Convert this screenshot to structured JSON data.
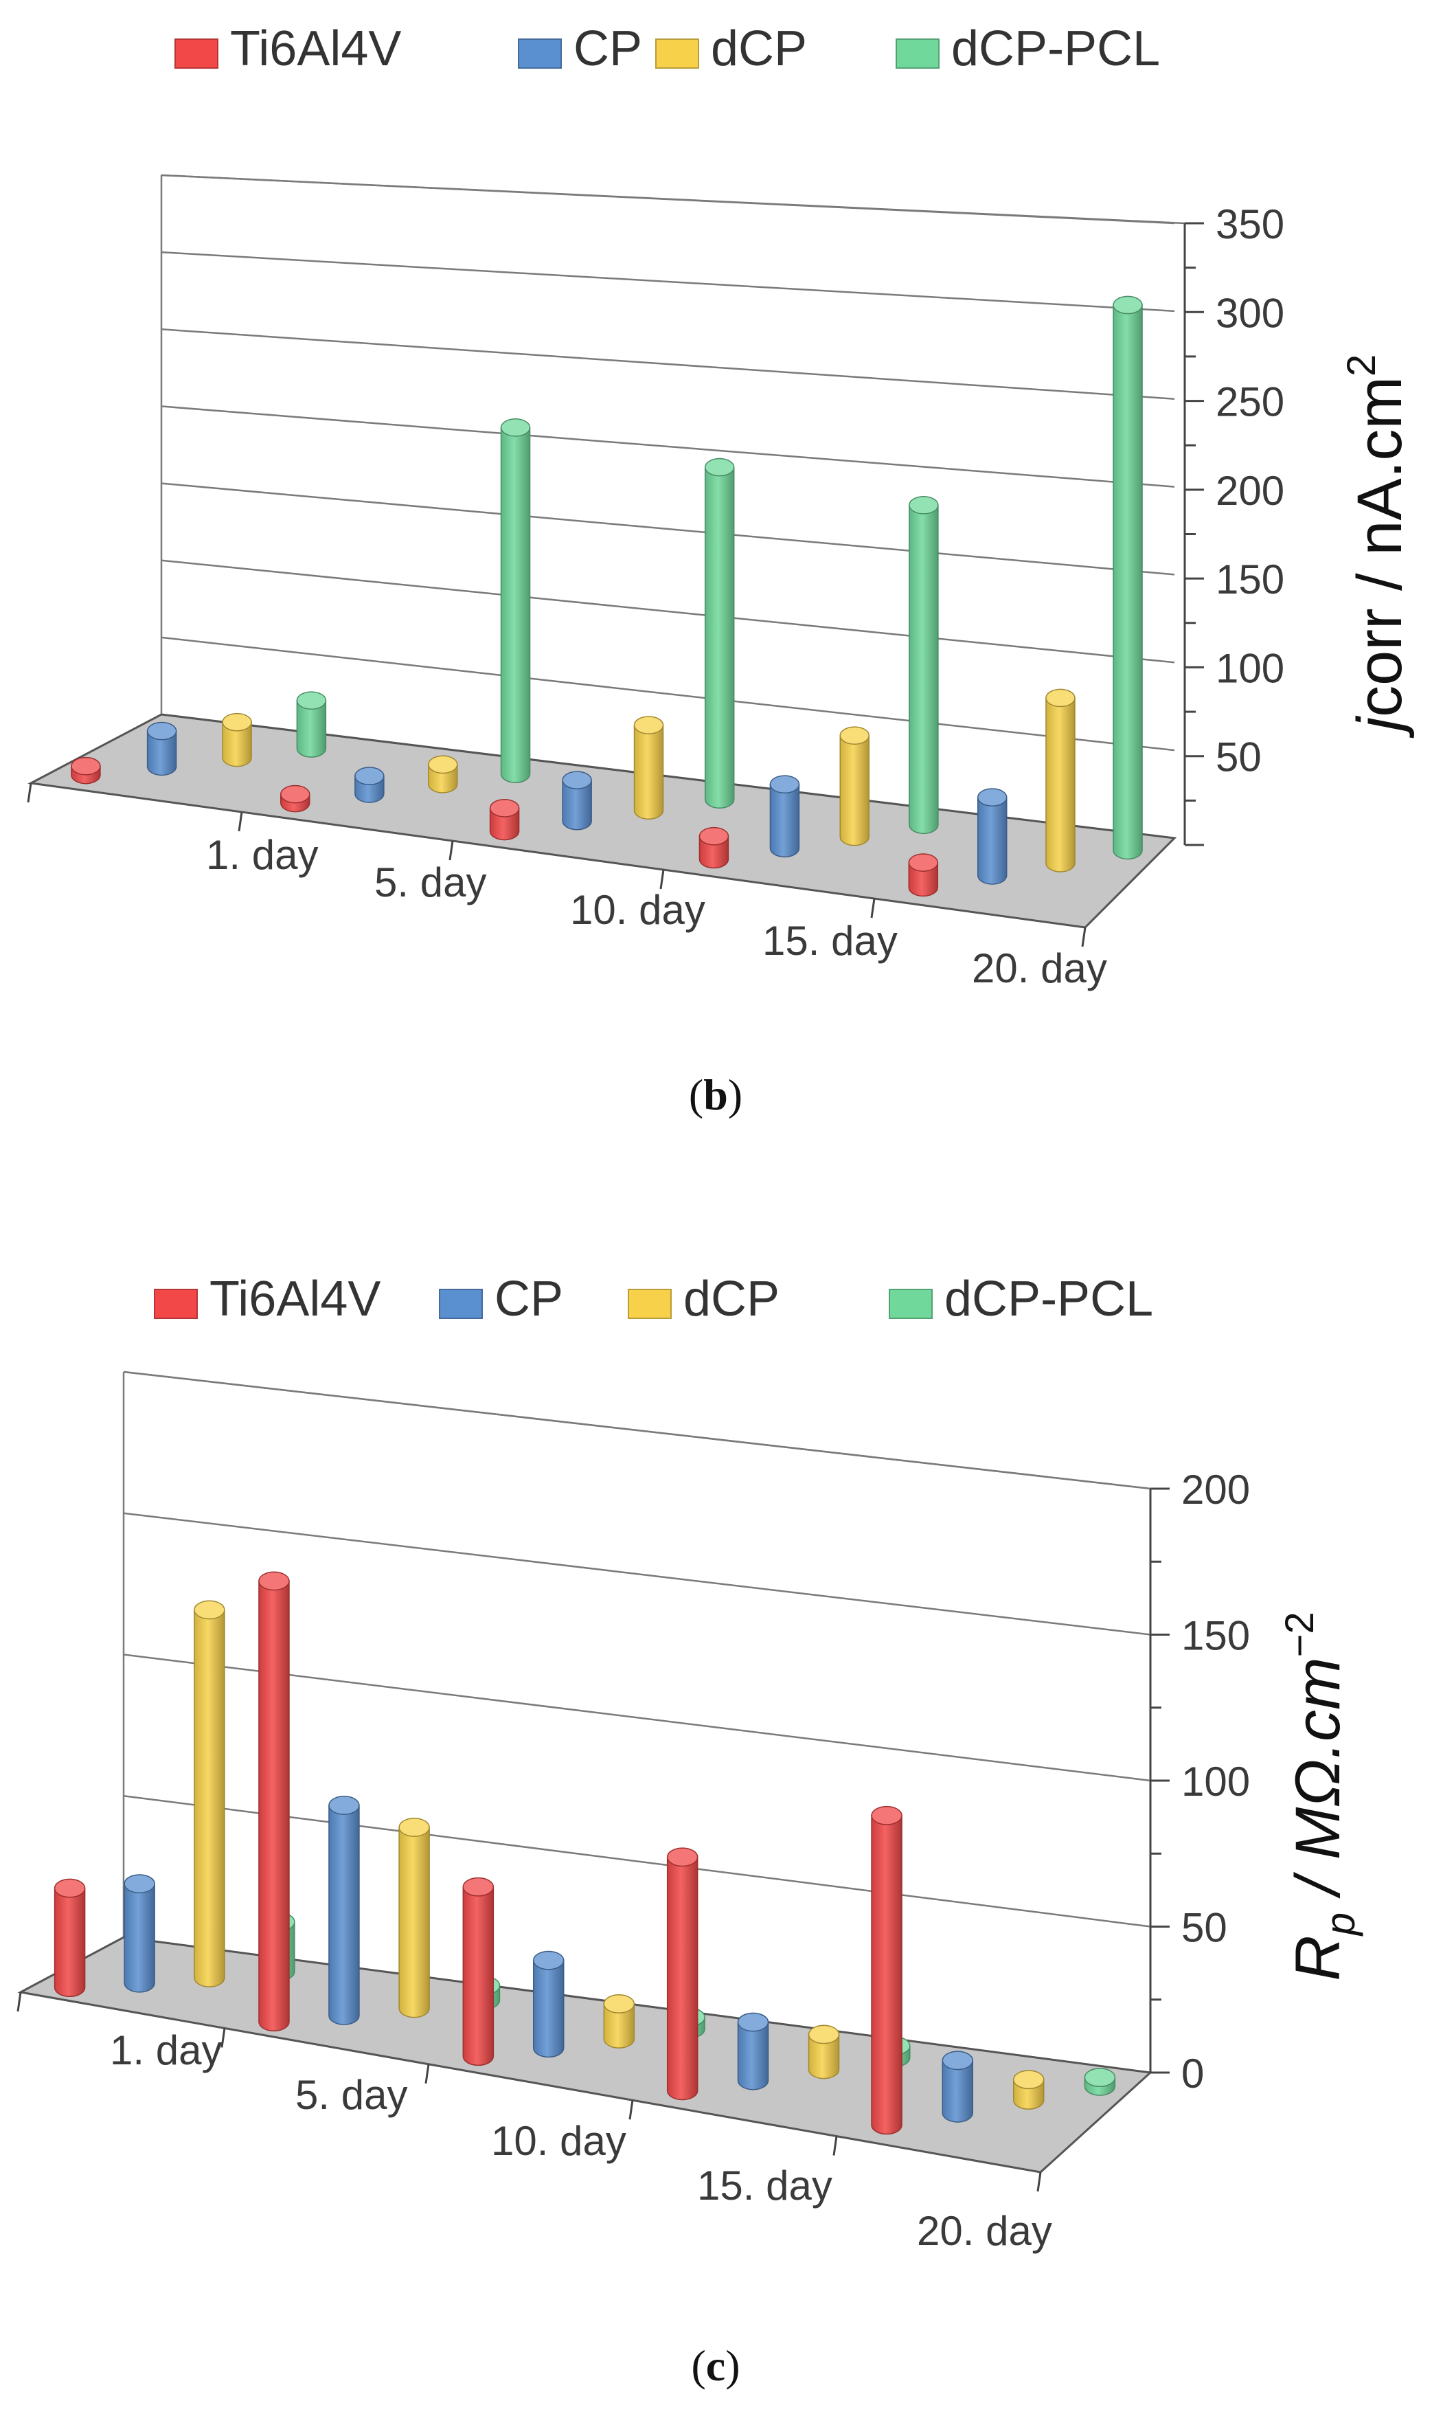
{
  "chart_data": [
    {
      "type": "bar",
      "panel_label": "b",
      "categories": [
        "1. day",
        "5. day",
        "10. day",
        "15. day",
        "20. day"
      ],
      "series": [
        {
          "name": "Ti6Al4V",
          "color": "#f24848",
          "values": [
            5,
            5,
            13,
            13,
            14
          ]
        },
        {
          "name": "CP",
          "color": "#5a8fd0",
          "values": [
            20,
            10,
            23,
            36,
            44
          ]
        },
        {
          "name": "dCP",
          "color": "#f7d14a",
          "values": [
            20,
            11,
            48,
            57,
            93
          ]
        },
        {
          "name": "dCP-PCL",
          "color": "#6fd89a",
          "values": [
            27,
            195,
            187,
            180,
            307
          ]
        }
      ],
      "ylabel_italic": "j",
      "ylabel_rest": "corr / nA.cm",
      "ylabel_sup": "2",
      "y_ticks": [
        50,
        100,
        150,
        200,
        250,
        300,
        350
      ],
      "ylim": [
        0,
        350
      ],
      "grid": true,
      "legend": "top"
    },
    {
      "type": "bar",
      "panel_label": "c",
      "categories": [
        "1. day",
        "5. day",
        "10. day",
        "15. day",
        "20. day"
      ],
      "series": [
        {
          "name": "Ti6Al4V",
          "color": "#f24848",
          "values": [
            34,
            151,
            58,
            80,
            106
          ]
        },
        {
          "name": "CP",
          "color": "#5a8fd0",
          "values": [
            34,
            72,
            30,
            20,
            18
          ]
        },
        {
          "name": "dCP",
          "color": "#f7d14a",
          "values": [
            126,
            62,
            12,
            12,
            7
          ]
        },
        {
          "name": "dCP-PCL",
          "color": "#6fd89a",
          "values": [
            17,
            5,
            4,
            4,
            3
          ]
        }
      ],
      "ylabel_main": "R",
      "ylabel_sub": "p",
      "ylabel_rest": " / MΩ.cm",
      "ylabel_sup": "−2",
      "y_ticks": [
        0,
        50,
        100,
        150,
        200
      ],
      "ylim": [
        0,
        200
      ],
      "grid": true,
      "legend": "top"
    }
  ]
}
